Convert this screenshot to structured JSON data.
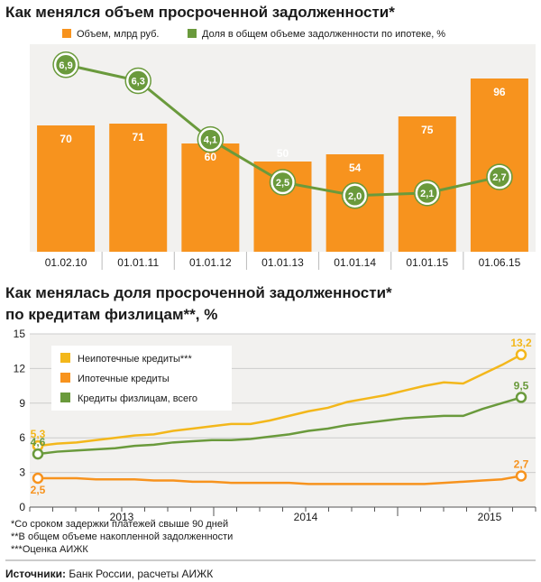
{
  "colors": {
    "orange": "#F7931E",
    "green": "#6A9A3C",
    "yellow": "#F3B71B",
    "panel_bg": "#F2F1EF",
    "grid": "#CCCCCC"
  },
  "chart_data": [
    {
      "type": "bar",
      "title": "Как менялся объем просроченной задолженности*",
      "categories": [
        "01.02.10",
        "01.01.11",
        "01.01.12",
        "01.01.13",
        "01.01.14",
        "01.01.15",
        "01.06.15"
      ],
      "series": [
        {
          "name": "Объем, млрд руб.",
          "kind": "bar",
          "values": [
            70,
            71,
            60,
            50,
            54,
            75,
            96
          ],
          "labels": [
            "70",
            "71",
            "60",
            "50",
            "54",
            "75",
            "96"
          ]
        },
        {
          "name": "Доля в общем объеме задолженности по ипотеке, %",
          "kind": "line",
          "values": [
            6.9,
            6.3,
            4.1,
            2.5,
            2.0,
            2.1,
            2.7
          ],
          "labels": [
            "6,9",
            "6,3",
            "4,1",
            "2,5",
            "2,0",
            "2,1",
            "2,7"
          ]
        }
      ],
      "legend": "top"
    },
    {
      "type": "line",
      "title_line1": "Как менялась доля просроченной задолженности*",
      "title_line2": "по кредитам физлицам**, %",
      "ylim": [
        0,
        15
      ],
      "yticks": [
        "0",
        "3",
        "6",
        "9",
        "12",
        "15"
      ],
      "xlim": [
        0,
        66
      ],
      "xticks": [
        {
          "label": "2013",
          "x": 12
        },
        {
          "label": "2014",
          "x": 36
        },
        {
          "label": "2015",
          "x": 60
        }
      ],
      "series": [
        {
          "name": "Неипотечные кредиты***",
          "values": [
            5.3,
            5.5,
            5.6,
            5.8,
            6.0,
            6.2,
            6.3,
            6.6,
            6.8,
            7.0,
            7.2,
            7.2,
            7.5,
            7.9,
            8.3,
            8.6,
            9.1,
            9.4,
            9.7,
            10.1,
            10.5,
            10.8,
            10.7,
            11.5,
            12.3,
            13.2
          ],
          "start_label": "5,3",
          "end_label": "13,2"
        },
        {
          "name": "Ипотечные кредиты",
          "values": [
            2.5,
            2.5,
            2.5,
            2.4,
            2.4,
            2.4,
            2.3,
            2.3,
            2.2,
            2.2,
            2.1,
            2.1,
            2.1,
            2.1,
            2.0,
            2.0,
            2.0,
            2.0,
            2.0,
            2.0,
            2.0,
            2.1,
            2.2,
            2.3,
            2.4,
            2.7
          ],
          "start_label": "2,5",
          "end_label": "2,7"
        },
        {
          "name": "Кредиты физлицам, всего",
          "values": [
            4.6,
            4.8,
            4.9,
            5.0,
            5.1,
            5.3,
            5.4,
            5.6,
            5.7,
            5.8,
            5.8,
            5.9,
            6.1,
            6.3,
            6.6,
            6.8,
            7.1,
            7.3,
            7.5,
            7.7,
            7.8,
            7.9,
            7.9,
            8.5,
            9.0,
            9.5
          ],
          "start_label": "4,6",
          "end_label": "9,5"
        }
      ],
      "legend": "top-left"
    }
  ],
  "footnotes": [
    "*Со сроком задержки платежей свыше 90 дней",
    "**В общем объеме накопленной задолженности",
    "***Оценка АИЖК"
  ],
  "source": {
    "label": "Источники:",
    "text": " Банк России, расчеты АИЖК"
  }
}
